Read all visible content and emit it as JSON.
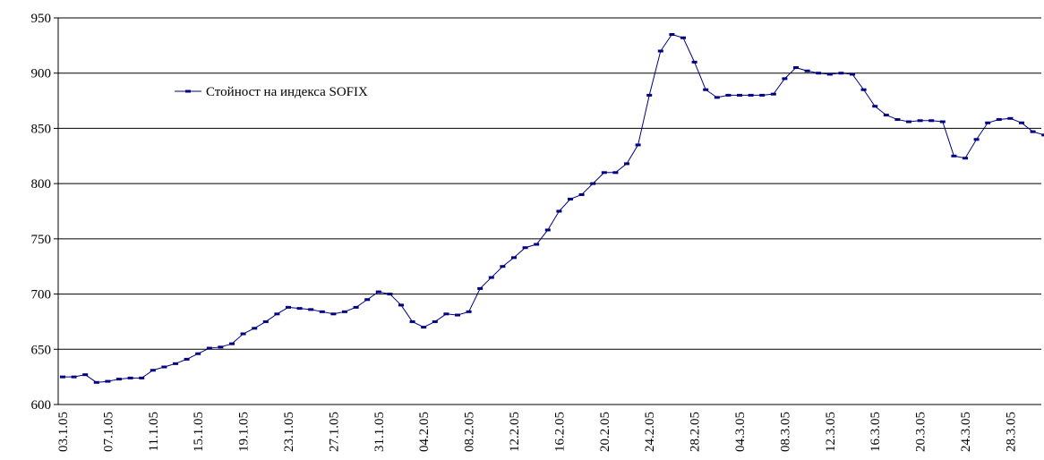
{
  "chart_data": {
    "type": "line",
    "categories": [
      "03.1.05",
      null,
      null,
      null,
      "07.1.05",
      null,
      null,
      null,
      "11.1.05",
      null,
      null,
      null,
      "15.1.05",
      null,
      null,
      null,
      "19.1.05",
      null,
      null,
      null,
      "23.1.05",
      null,
      null,
      null,
      "27.1.05",
      null,
      null,
      null,
      "31.1.05",
      null,
      null,
      null,
      "04.2.05",
      null,
      null,
      null,
      "08.2.05",
      null,
      null,
      null,
      "12.2.05",
      null,
      null,
      null,
      "16.2.05",
      null,
      null,
      null,
      "20.2.05",
      null,
      null,
      null,
      "24.2.05",
      null,
      null,
      null,
      "28.2.05",
      null,
      null,
      null,
      "04.3.05",
      null,
      null,
      null,
      "08.3.05",
      null,
      null,
      null,
      "12.3.05",
      null,
      null,
      null,
      "16.3.05",
      null,
      null,
      null,
      "20.3.05",
      null,
      null,
      null,
      "24.3.05",
      null,
      null,
      null,
      "28.3.05",
      null,
      null,
      null
    ],
    "series": [
      {
        "name": "Стойност на индекса SOFIX",
        "color": "#000080",
        "values": [
          625,
          625,
          627,
          620,
          621,
          623,
          624,
          624,
          631,
          634,
          637,
          641,
          646,
          651,
          652,
          655,
          664,
          669,
          675,
          682,
          688,
          687,
          686,
          684,
          682,
          684,
          688,
          695,
          702,
          700,
          690,
          675,
          670,
          675,
          682,
          681,
          684,
          705,
          715,
          725,
          733,
          742,
          745,
          758,
          775,
          786,
          790,
          800,
          810,
          810,
          818,
          835,
          880,
          920,
          935,
          932,
          910,
          885,
          878,
          880,
          880,
          880,
          880,
          881,
          895,
          905,
          902,
          900,
          899,
          900,
          899,
          885,
          870,
          862,
          858,
          856,
          857,
          857,
          856,
          825,
          823,
          840,
          855,
          858,
          859,
          855,
          847,
          844
        ]
      }
    ],
    "ylim": [
      600,
      950
    ],
    "yticks": [
      600,
      650,
      700,
      750,
      800,
      850,
      900,
      950
    ],
    "grid": true
  }
}
